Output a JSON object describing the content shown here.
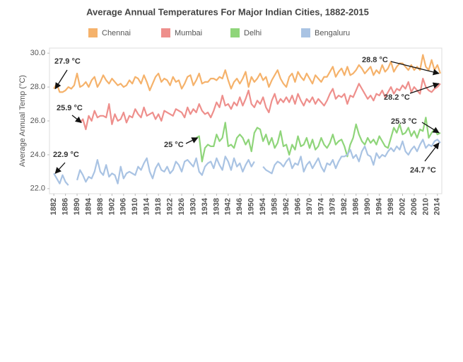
{
  "chart_data": {
    "type": "line",
    "title": "Average Annual Temperatures For Major Indian Cities, 1882-2015",
    "y_label": "Average Annual Temp (°C)",
    "x": [
      1882,
      1883,
      1884,
      1885,
      1886,
      1887,
      1888,
      1889,
      1890,
      1891,
      1892,
      1893,
      1894,
      1895,
      1896,
      1897,
      1898,
      1899,
      1900,
      1901,
      1902,
      1903,
      1904,
      1905,
      1906,
      1907,
      1908,
      1909,
      1910,
      1911,
      1912,
      1913,
      1914,
      1915,
      1916,
      1917,
      1918,
      1919,
      1920,
      1921,
      1922,
      1923,
      1924,
      1925,
      1926,
      1927,
      1928,
      1929,
      1930,
      1931,
      1932,
      1933,
      1934,
      1935,
      1936,
      1937,
      1938,
      1939,
      1940,
      1941,
      1942,
      1943,
      1944,
      1945,
      1946,
      1947,
      1948,
      1949,
      1950,
      1951,
      1952,
      1953,
      1954,
      1955,
      1956,
      1957,
      1958,
      1959,
      1960,
      1961,
      1962,
      1963,
      1964,
      1965,
      1966,
      1967,
      1968,
      1969,
      1970,
      1971,
      1972,
      1973,
      1974,
      1975,
      1976,
      1977,
      1978,
      1979,
      1980,
      1981,
      1982,
      1983,
      1984,
      1985,
      1986,
      1987,
      1988,
      1989,
      1990,
      1991,
      1992,
      1993,
      1994,
      1995,
      1996,
      1997,
      1998,
      1999,
      2000,
      2001,
      2002,
      2003,
      2004,
      2005,
      2006,
      2007,
      2008,
      2009,
      2010,
      2011,
      2012,
      2013,
      2014,
      2015
    ],
    "series": [
      {
        "name": "Chennai",
        "color": "#f5b26b",
        "values": [
          27.9,
          28.2,
          27.7,
          27.7,
          27.8,
          28.0,
          27.9,
          28.1,
          28.8,
          28.0,
          28.1,
          28.3,
          28.0,
          28.4,
          28.6,
          28.0,
          28.3,
          28.7,
          28.4,
          28.2,
          28.5,
          28.3,
          28.1,
          28.2,
          28.0,
          28.1,
          28.4,
          28.2,
          28.6,
          28.5,
          28.2,
          28.7,
          28.3,
          27.8,
          28.2,
          28.6,
          28.8,
          28.3,
          28.5,
          28.4,
          28.1,
          28.6,
          28.3,
          28.4,
          27.9,
          28.2,
          28.6,
          28.7,
          28.1,
          28.4,
          28.8,
          28.2,
          28.3,
          28.3,
          28.5,
          28.5,
          28.4,
          28.6,
          28.5,
          29.0,
          28.4,
          27.9,
          28.3,
          28.5,
          28.2,
          28.5,
          28.9,
          28.0,
          28.6,
          28.3,
          28.5,
          28.8,
          28.4,
          28.6,
          28.0,
          28.4,
          28.7,
          29.0,
          28.5,
          28.2,
          28.0,
          28.6,
          28.8,
          28.3,
          28.9,
          28.6,
          28.4,
          28.8,
          28.5,
          28.2,
          28.7,
          28.5,
          28.3,
          28.6,
          28.6,
          28.9,
          29.2,
          28.6,
          28.9,
          29.1,
          28.7,
          29.2,
          28.7,
          28.8,
          29.0,
          29.3,
          29.1,
          28.8,
          29.0,
          29.2,
          28.7,
          29.0,
          28.8,
          29.3,
          28.9,
          29.1,
          29.5,
          28.9,
          29.2,
          29.4,
          29.4,
          29.2,
          29.0,
          29.3,
          29.0,
          29.2,
          29.0,
          29.9,
          29.2,
          29.0,
          29.6,
          29.0,
          29.3,
          28.8
        ]
      },
      {
        "name": "Mumbai",
        "color": "#ee8f8c",
        "values": [
          null,
          null,
          null,
          null,
          null,
          null,
          null,
          null,
          null,
          25.9,
          26.1,
          25.5,
          26.3,
          26.0,
          26.6,
          26.2,
          26.3,
          26.3,
          26.2,
          27.0,
          25.8,
          26.4,
          26.0,
          26.1,
          26.5,
          25.9,
          26.3,
          26.2,
          26.7,
          26.4,
          26.2,
          26.8,
          26.3,
          26.4,
          26.5,
          26.1,
          26.4,
          26.0,
          26.6,
          26.5,
          26.4,
          26.3,
          26.7,
          26.6,
          26.5,
          26.2,
          26.8,
          26.4,
          26.7,
          26.5,
          27.0,
          26.6,
          26.4,
          26.5,
          26.2,
          26.6,
          27.1,
          26.8,
          27.5,
          26.9,
          27.0,
          26.7,
          27.1,
          26.9,
          27.4,
          26.9,
          27.3,
          27.8,
          27.0,
          26.8,
          27.2,
          27.0,
          27.4,
          26.8,
          26.5,
          27.2,
          27.6,
          27.0,
          27.3,
          27.1,
          27.4,
          27.1,
          27.5,
          27.0,
          27.6,
          27.2,
          26.9,
          27.3,
          27.1,
          27.4,
          27.0,
          27.3,
          27.1,
          26.9,
          27.2,
          27.6,
          27.9,
          27.3,
          27.5,
          27.4,
          27.6,
          27.0,
          27.5,
          27.4,
          27.8,
          28.2,
          27.9,
          27.6,
          27.3,
          27.5,
          27.2,
          27.6,
          27.5,
          27.8,
          27.4,
          27.7,
          28.0,
          27.6,
          27.9,
          27.8,
          28.1,
          27.9,
          28.3,
          27.7,
          28.0,
          27.8,
          27.6,
          28.5,
          28.0,
          27.8,
          27.7,
          27.9,
          28.0,
          28.2
        ]
      },
      {
        "name": "Delhi",
        "color": "#8fd57a",
        "values": [
          null,
          null,
          null,
          null,
          null,
          null,
          null,
          null,
          null,
          null,
          null,
          null,
          null,
          null,
          null,
          null,
          null,
          null,
          null,
          null,
          null,
          null,
          null,
          null,
          null,
          null,
          null,
          null,
          null,
          null,
          null,
          null,
          null,
          null,
          null,
          null,
          null,
          null,
          null,
          null,
          null,
          null,
          null,
          null,
          null,
          null,
          null,
          null,
          null,
          25.0,
          25.1,
          23.6,
          24.4,
          24.6,
          24.5,
          24.5,
          25.2,
          24.8,
          25.0,
          25.9,
          24.5,
          24.6,
          24.4,
          25.0,
          25.2,
          25.0,
          24.6,
          24.9,
          24.2,
          25.3,
          25.6,
          25.5,
          24.8,
          25.2,
          24.6,
          25.0,
          24.4,
          24.7,
          25.4,
          24.5,
          24.6,
          24.0,
          24.6,
          24.3,
          25.1,
          24.5,
          24.6,
          25.0,
          24.4,
          24.9,
          24.3,
          24.5,
          25.0,
          24.6,
          24.4,
          24.7,
          25.2,
          24.6,
          24.8,
          24.9,
          24.5,
          23.9,
          24.6,
          25.0,
          25.8,
          25.2,
          24.8,
          24.6,
          25.0,
          24.7,
          24.9,
          24.6,
          25.1,
          24.8,
          24.5,
          24.4,
          25.0,
          25.6,
          25.3,
          25.8,
          25.2,
          25.3,
          25.6,
          25.1,
          25.4,
          25.0,
          25.5,
          25.4,
          26.2,
          25.0,
          25.3,
          25.5,
          25.2,
          25.3
        ]
      },
      {
        "name": "Bengaluru",
        "color": "#a9c3e3",
        "values": [
          22.9,
          22.6,
          22.3,
          22.8,
          22.4,
          22.2,
          null,
          null,
          22.5,
          23.1,
          22.8,
          22.4,
          22.7,
          22.6,
          23.0,
          23.7,
          23.0,
          22.8,
          23.4,
          22.7,
          22.9,
          22.8,
          22.3,
          23.3,
          22.6,
          22.9,
          23.0,
          22.9,
          22.8,
          23.3,
          23.1,
          23.5,
          23.8,
          23.0,
          22.6,
          23.2,
          23.5,
          23.1,
          23.0,
          23.3,
          22.9,
          23.1,
          23.6,
          23.4,
          23.0,
          23.6,
          23.7,
          23.5,
          23.3,
          23.8,
          23.0,
          22.8,
          23.3,
          23.5,
          23.6,
          23.2,
          23.8,
          23.4,
          23.1,
          23.9,
          23.6,
          23.1,
          23.8,
          23.3,
          23.5,
          23.0,
          23.4,
          23.7,
          23.3,
          23.6,
          null,
          null,
          23.3,
          23.1,
          23.0,
          22.9,
          23.4,
          23.6,
          23.5,
          23.3,
          23.6,
          23.8,
          23.2,
          23.5,
          23.4,
          23.9,
          23.0,
          23.4,
          23.6,
          23.2,
          23.5,
          23.8,
          23.3,
          23.0,
          23.5,
          23.4,
          23.7,
          23.2,
          23.6,
          23.9,
          23.9,
          24.0,
          24.3,
          23.8,
          24.0,
          23.6,
          24.2,
          24.5,
          24.0,
          23.9,
          23.4,
          24.1,
          23.8,
          24.0,
          23.9,
          24.2,
          24.4,
          24.2,
          24.5,
          24.3,
          24.8,
          24.2,
          24.0,
          24.3,
          24.5,
          24.2,
          24.6,
          24.9,
          24.4,
          24.6,
          24.5,
          24.8,
          24.9,
          24.7
        ]
      }
    ],
    "xlim": [
      1880.5,
      2015.5
    ],
    "xticks": [
      1882,
      1886,
      1890,
      1894,
      1898,
      1902,
      1906,
      1910,
      1914,
      1918,
      1922,
      1926,
      1930,
      1934,
      1938,
      1942,
      1946,
      1950,
      1954,
      1958,
      1962,
      1966,
      1970,
      1974,
      1978,
      1982,
      1986,
      1990,
      1994,
      1998,
      2002,
      2006,
      2010,
      2014
    ],
    "ylim": [
      21.7,
      30.3
    ],
    "yticks": [
      {
        "value": 22,
        "label": "22.0"
      },
      {
        "value": 24,
        "label": "24.0"
      },
      {
        "value": 26,
        "label": "26.0"
      },
      {
        "value": 28,
        "label": "28.0"
      },
      {
        "value": 30,
        "label": "30.0"
      }
    ],
    "grid": false,
    "legend": "top",
    "annotations": [
      {
        "label": "27.9 °C",
        "x": 1882,
        "y": 27.9
      },
      {
        "label": "25.9 °C",
        "x": 1891,
        "y": 25.9
      },
      {
        "label": "22.9 °C",
        "x": 1882,
        "y": 22.9
      },
      {
        "label": "25 °C",
        "x": 1931,
        "y": 25.0
      },
      {
        "label": "28.8 °C",
        "x": 2015,
        "y": 28.8
      },
      {
        "label": "28.2 °C",
        "x": 2015,
        "y": 28.2
      },
      {
        "label": "25.3 °C",
        "x": 2015,
        "y": 25.3
      },
      {
        "label": "24.7 °C",
        "x": 2015,
        "y": 24.7
      }
    ]
  }
}
